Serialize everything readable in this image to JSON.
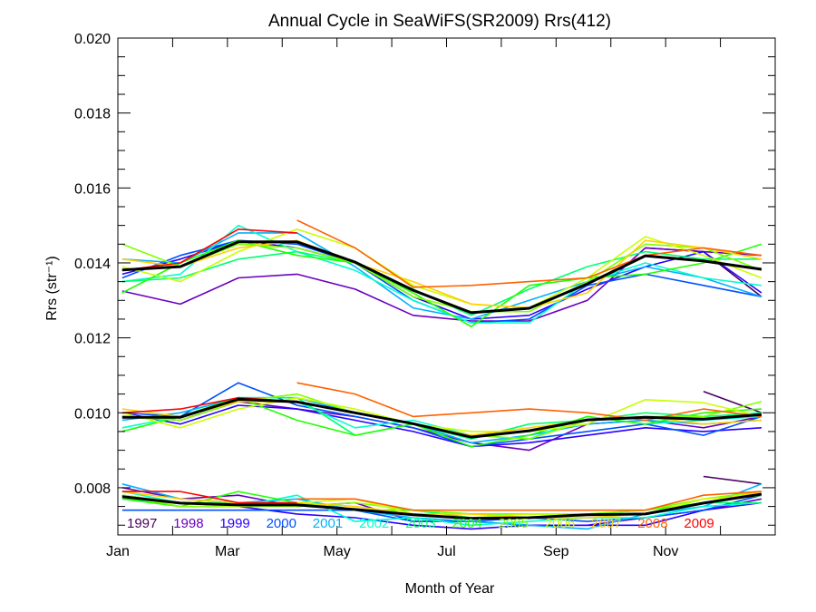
{
  "chart_data": {
    "type": "line",
    "title": "Annual Cycle in SeaWiFS(SR2009) Rrs(412)",
    "xlabel": "Month of Year",
    "ylabel": "Rrs (str⁻¹)",
    "xlim": [
      0,
      12
    ],
    "ylim": [
      0.00674,
      0.02
    ],
    "x_ticks": [
      {
        "v": 0,
        "label": "Jan"
      },
      {
        "v": 2,
        "label": "Mar"
      },
      {
        "v": 4,
        "label": "May"
      },
      {
        "v": 6,
        "label": "Jul"
      },
      {
        "v": 8,
        "label": "Sep"
      },
      {
        "v": 10,
        "label": "Nov"
      }
    ],
    "y_ticks": [
      {
        "v": 0.008,
        "label": "0.008"
      },
      {
        "v": 0.01,
        "label": "0.010"
      },
      {
        "v": 0.012,
        "label": "0.012"
      },
      {
        "v": 0.014,
        "label": "0.014"
      },
      {
        "v": 0.016,
        "label": "0.016"
      },
      {
        "v": 0.018,
        "label": "0.018"
      },
      {
        "v": 0.02,
        "label": "0.020"
      }
    ],
    "grid": false,
    "legend_placement": "bottom-inside",
    "x": [
      0.08,
      1.14,
      2.2,
      3.27,
      4.33,
      5.39,
      6.45,
      7.51,
      8.57,
      9.63,
      10.69,
      11.75
    ],
    "years": [
      "1997",
      "1998",
      "1999",
      "2000",
      "2001",
      "2002",
      "2003",
      "2004",
      "2005",
      "2006",
      "2007",
      "2008",
      "2009"
    ],
    "colors": [
      "#4a0060",
      "#6a00c0",
      "#2800ff",
      "#0050ff",
      "#00b0ff",
      "#00ffd0",
      "#00ff70",
      "#20ff00",
      "#80ff00",
      "#c8ff00",
      "#ffd000",
      "#ff6000",
      "#ff0000"
    ],
    "mean_color": "#000000",
    "groups": [
      {
        "mean": [
          0.01381,
          0.0139,
          0.01456,
          0.01456,
          0.01402,
          0.01327,
          0.01267,
          0.01279,
          0.01344,
          0.01419,
          0.01405,
          0.01383
        ],
        "values": [
          [
            null,
            null,
            null,
            null,
            null,
            null,
            null,
            null,
            null,
            0.0144,
            0.0143,
            0.0131
          ],
          [
            0.01325,
            0.0129,
            0.0136,
            0.0137,
            0.0133,
            0.0126,
            0.01245,
            0.01245,
            0.013,
            0.0144,
            0.0143,
            0.0142
          ],
          [
            0.0137,
            0.0141,
            0.0146,
            0.0144,
            0.014,
            0.0131,
            0.0125,
            0.0126,
            0.0133,
            0.0139,
            0.0143,
            0.0132
          ],
          [
            0.0136,
            0.0142,
            0.0146,
            0.0145,
            0.014,
            0.013,
            0.0124,
            0.0125,
            0.0134,
            0.0137,
            0.0134,
            0.0131
          ],
          [
            0.0141,
            0.014,
            0.0148,
            0.0148,
            0.0139,
            0.0128,
            0.0125,
            0.013,
            0.0135,
            0.0139,
            0.0136,
            0.0131
          ],
          [
            0.0135,
            0.0137,
            0.015,
            0.0143,
            0.0138,
            0.013,
            0.0124,
            0.0124,
            0.0135,
            0.014,
            0.0136,
            0.0134
          ],
          [
            0.0135,
            0.0136,
            0.0141,
            0.0143,
            0.014,
            0.0133,
            0.0126,
            0.0133,
            0.0139,
            0.0143,
            0.0141,
            0.0141
          ],
          [
            0.0132,
            0.014,
            0.0146,
            0.0142,
            0.014,
            0.0132,
            0.0123,
            0.0134,
            0.0136,
            0.0137,
            0.014,
            0.0145
          ],
          [
            0.0145,
            0.0139,
            0.0145,
            0.0144,
            0.014,
            0.0131,
            0.0127,
            0.0127,
            0.0135,
            0.0145,
            0.0144,
            0.0138
          ],
          [
            0.0139,
            0.0135,
            0.0143,
            0.0149,
            0.0144,
            0.0134,
            0.0129,
            0.0128,
            0.0136,
            0.0147,
            0.0142,
            0.0136
          ],
          [
            0.0141,
            0.0139,
            0.0144,
            0.0146,
            0.014,
            0.0135,
            0.0129,
            0.0128,
            0.0132,
            0.0146,
            0.0144,
            0.0141
          ],
          [
            null,
            null,
            null,
            0.01514,
            0.0144,
            0.01335,
            0.0134,
            0.0135,
            0.0136,
            0.0142,
            0.0144,
            0.0142
          ],
          [
            0.0138,
            0.014,
            0.0149,
            0.0148,
            null,
            null,
            null,
            null,
            null,
            null,
            null,
            null
          ]
        ]
      },
      {
        "mean": [
          0.00988,
          0.00988,
          0.01036,
          0.01029,
          0.01,
          0.00971,
          0.00935,
          0.00952,
          0.00981,
          0.00988,
          0.00983,
          0.00995
        ],
        "values": [
          [
            null,
            null,
            null,
            null,
            null,
            null,
            null,
            null,
            null,
            null,
            0.01057,
            0.01
          ],
          [
            0.0099,
            0.0098,
            0.0103,
            0.0101,
            0.0099,
            0.0096,
            0.0092,
            0.009,
            0.0097,
            0.0098,
            0.0096,
            0.0099
          ],
          [
            0.01,
            0.0097,
            0.0102,
            0.0101,
            0.0098,
            0.0095,
            0.0091,
            0.0092,
            0.0094,
            0.0096,
            0.0095,
            0.0096
          ],
          [
            0.01,
            0.0099,
            0.0108,
            0.0102,
            0.0099,
            0.0096,
            0.0091,
            0.0093,
            0.0095,
            0.0097,
            0.0094,
            0.0099
          ],
          [
            0.0098,
            0.01,
            0.0104,
            0.0104,
            0.01,
            0.0097,
            0.0092,
            0.0094,
            0.0097,
            0.0098,
            0.0097,
            0.0098
          ],
          [
            0.0096,
            0.0099,
            0.0104,
            0.0103,
            0.0096,
            0.0098,
            0.0094,
            0.0093,
            0.0099,
            0.0097,
            0.0098,
            0.0099
          ],
          [
            0.0095,
            0.0099,
            0.0104,
            0.0104,
            0.0094,
            0.0097,
            0.0093,
            0.0097,
            0.0098,
            0.01,
            0.0099,
            0.01
          ],
          [
            0.0095,
            0.0099,
            0.0104,
            0.0098,
            0.0094,
            0.0097,
            0.0091,
            0.0094,
            0.0099,
            0.0097,
            0.01,
            0.0101
          ],
          [
            0.0099,
            0.0098,
            0.0103,
            0.0105,
            0.01,
            0.0097,
            0.0094,
            0.0093,
            0.0098,
            0.0099,
            0.0099,
            0.0103
          ],
          [
            0.01,
            0.0096,
            0.0101,
            0.0104,
            0.0101,
            0.0097,
            0.0095,
            0.0095,
            0.0097,
            0.01035,
            0.01027,
            0.0099
          ],
          [
            0.0101,
            0.0099,
            0.0103,
            0.0103,
            0.01,
            0.0097,
            0.0094,
            0.0096,
            0.0098,
            0.0099,
            0.0097,
            0.0098
          ],
          [
            null,
            null,
            null,
            0.0108,
            0.0105,
            0.0099,
            0.01,
            0.0101,
            0.01,
            0.0098,
            0.0101,
            0.0099
          ],
          [
            0.01,
            0.0101,
            0.0104,
            0.0103,
            null,
            null,
            null,
            null,
            null,
            null,
            null,
            null
          ]
        ]
      },
      {
        "mean": [
          0.00776,
          0.00759,
          0.00754,
          0.00754,
          0.00742,
          0.00728,
          0.00718,
          0.0072,
          0.00728,
          0.0073,
          0.00759,
          0.00783
        ],
        "values": [
          [
            null,
            null,
            null,
            null,
            null,
            null,
            null,
            null,
            null,
            null,
            0.0083,
            0.0081
          ],
          [
            0.008,
            0.0077,
            0.0078,
            0.0075,
            0.0076,
            0.0071,
            0.0071,
            0.007,
            0.007,
            0.0072,
            0.0074,
            0.0077
          ],
          [
            0.0078,
            0.0076,
            0.0075,
            0.0073,
            0.0072,
            0.007,
            0.0069,
            0.007,
            0.007,
            0.007,
            0.0074,
            0.0076
          ],
          [
            0.0074,
            0.0074,
            0.0074,
            0.0074,
            0.0074,
            0.0071,
            0.0071,
            0.0072,
            0.0071,
            0.0072,
            0.0074,
            0.0078
          ],
          [
            0.0081,
            0.0077,
            0.0076,
            0.0077,
            0.0074,
            0.0072,
            0.0071,
            0.007,
            0.0069,
            0.0073,
            0.0075,
            0.0081
          ],
          [
            0.0079,
            0.0076,
            0.0075,
            0.0078,
            0.0071,
            0.0072,
            0.007,
            0.0071,
            0.0072,
            0.0072,
            0.0075,
            0.0076
          ],
          [
            0.0077,
            0.0076,
            0.0076,
            0.0076,
            0.0074,
            0.0074,
            0.0072,
            0.0072,
            0.0073,
            0.0073,
            0.0076,
            0.0076
          ],
          [
            0.0077,
            0.0075,
            0.0079,
            0.0076,
            0.0074,
            0.0074,
            0.0073,
            0.0073,
            0.0073,
            0.0074,
            0.0076,
            0.0078
          ],
          [
            0.0078,
            0.0075,
            0.0075,
            0.0075,
            0.0076,
            0.0074,
            0.0073,
            0.0073,
            0.0073,
            0.0074,
            0.0077,
            0.0079
          ],
          [
            0.0078,
            0.0076,
            0.0075,
            0.0076,
            0.0077,
            0.0073,
            0.0072,
            0.0073,
            0.0073,
            0.0073,
            0.0077,
            0.0078
          ],
          [
            0.0079,
            0.0077,
            0.0076,
            0.0076,
            0.0075,
            0.0073,
            0.0073,
            0.0072,
            0.0072,
            0.0073,
            0.0076,
            0.0079
          ],
          [
            null,
            null,
            null,
            0.0077,
            0.0077,
            0.0074,
            0.0074,
            0.0074,
            0.0074,
            0.0074,
            0.0078,
            0.0079
          ],
          [
            0.0079,
            0.0079,
            0.0076,
            0.0076,
            null,
            null,
            null,
            null,
            null,
            null,
            null,
            null
          ]
        ]
      }
    ]
  }
}
